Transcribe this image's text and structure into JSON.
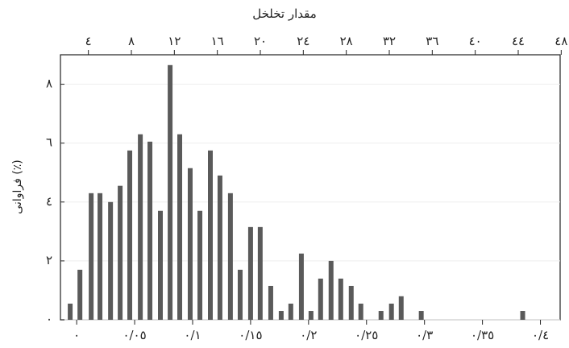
{
  "chart_data": {
    "type": "bar",
    "x2label": "مقدار تخلخل",
    "ylabel": "فراوانی (٪)",
    "color": "#5a5a5a",
    "grid": true,
    "x": [
      -0.0056,
      0.0028,
      0.0125,
      0.0201,
      0.0292,
      0.0375,
      0.0458,
      0.0549,
      0.0632,
      0.0722,
      0.0806,
      0.0889,
      0.0979,
      0.1063,
      0.1153,
      0.1236,
      0.1326,
      0.141,
      0.15,
      0.1583,
      0.1674,
      0.1764,
      0.1847,
      0.1938,
      0.2021,
      0.2104,
      0.2194,
      0.2278,
      0.2368,
      0.2451,
      0.2625,
      0.2715,
      0.2799,
      0.2972,
      0.3847
    ],
    "values": [
      0.55,
      1.7,
      4.3,
      4.3,
      4.0,
      4.55,
      5.75,
      6.3,
      6.05,
      3.7,
      8.65,
      6.3,
      5.15,
      3.7,
      5.75,
      4.9,
      4.3,
      1.7,
      3.15,
      3.15,
      1.15,
      0.3,
      0.55,
      2.25,
      0.3,
      1.4,
      2.0,
      1.4,
      1.15,
      0.55,
      0.3,
      0.55,
      0.8,
      0.3,
      0.3
    ],
    "xlim": [
      -0.014,
      0.417
    ],
    "xticks": [
      {
        "value": 0,
        "label": "٠"
      },
      {
        "value": 0.05,
        "label": "٠/٠٥"
      },
      {
        "value": 0.1,
        "label": "٠/١"
      },
      {
        "value": 0.15,
        "label": "٠/١٥"
      },
      {
        "value": 0.2,
        "label": "٠/٢"
      },
      {
        "value": 0.25,
        "label": "٠/٢٥"
      },
      {
        "value": 0.3,
        "label": "٠/٣"
      },
      {
        "value": 0.35,
        "label": "٠/٣٥"
      },
      {
        "value": 0.4,
        "label": "٠/٤"
      }
    ],
    "x2lim": [
      1.4,
      47.9
    ],
    "x2ticks": [
      {
        "value": 4,
        "label": "٤"
      },
      {
        "value": 8,
        "label": "٨"
      },
      {
        "value": 12,
        "label": "١٢"
      },
      {
        "value": 16,
        "label": "١٦"
      },
      {
        "value": 20,
        "label": "٢٠"
      },
      {
        "value": 24,
        "label": "٢٤"
      },
      {
        "value": 28,
        "label": "٢٨"
      },
      {
        "value": 32,
        "label": "٣٢"
      },
      {
        "value": 36,
        "label": "٣٦"
      },
      {
        "value": 40,
        "label": "٤٠"
      },
      {
        "value": 44,
        "label": "٤٤"
      },
      {
        "value": 48,
        "label": "٤٨"
      }
    ],
    "ylim": [
      0,
      9
    ],
    "yticks": [
      {
        "value": 0,
        "label": "٠"
      },
      {
        "value": 2,
        "label": "٢"
      },
      {
        "value": 4,
        "label": "٤"
      },
      {
        "value": 6,
        "label": "٦"
      },
      {
        "value": 8,
        "label": "٨"
      }
    ]
  }
}
